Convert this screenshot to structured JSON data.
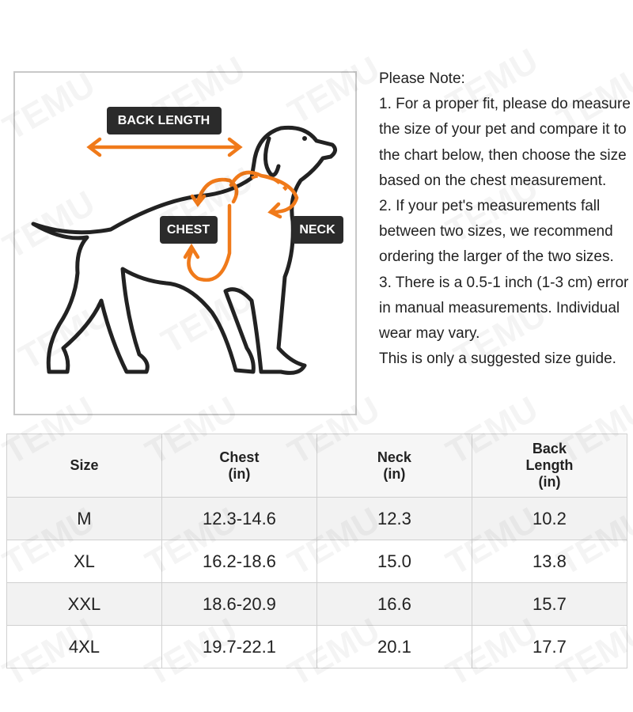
{
  "watermark": "TEMU",
  "diagram": {
    "back_length": "BACK LENGTH",
    "chest": "CHEST",
    "neck": "NECK"
  },
  "note": {
    "title": "Please Note:",
    "items": [
      "1. For a proper fit, please do measure the size of your pet and compare it to the chart below, then choose the size based on the chest measurement.",
      "2. If your pet's measurements fall between two sizes, we recommend ordering the larger of the two sizes.",
      "3. There is a 0.5-1 inch (1-3 cm) error in manual measurements. Individual wear may vary.",
      "This is only a suggested size guide."
    ]
  },
  "table": {
    "header": [
      [
        "Size"
      ],
      [
        "Chest",
        "(in)"
      ],
      [
        "Neck",
        "(in)"
      ],
      [
        "Back",
        "Length",
        "(in)"
      ]
    ],
    "rows": [
      [
        "M",
        "12.3-14.6",
        "12.3",
        "10.2"
      ],
      [
        "XL",
        "16.2-18.6",
        "15.0",
        "13.8"
      ],
      [
        "XXL",
        "18.6-20.9",
        "16.6",
        "15.7"
      ],
      [
        "4XL",
        "19.7-22.1",
        "20.1",
        "17.7"
      ]
    ]
  }
}
